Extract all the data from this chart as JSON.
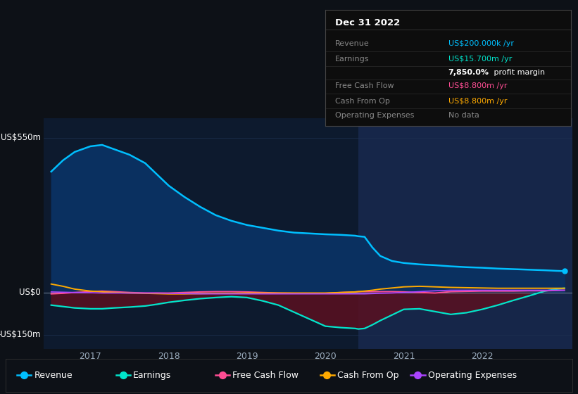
{
  "bg_color": "#0d1117",
  "plot_bg_color": "#0d1a2e",
  "highlight_bg_color": "#1e3060",
  "grid_color": "#1e3050",
  "ylim": [
    -200,
    620
  ],
  "xlim": [
    2016.4,
    2023.15
  ],
  "xticks": [
    2017,
    2018,
    2019,
    2020,
    2021,
    2022
  ],
  "ytick_labels": [
    "US$550m",
    "US$0",
    "-US$150m"
  ],
  "ytick_vals": [
    550,
    0,
    -150
  ],
  "legend_items": [
    "Revenue",
    "Earnings",
    "Free Cash Flow",
    "Cash From Op",
    "Operating Expenses"
  ],
  "legend_colors": [
    "#00bfff",
    "#00e5cc",
    "#ff4d94",
    "#ffaa00",
    "#aa44ff"
  ],
  "revenue_color": "#00bfff",
  "earnings_color": "#00e5cc",
  "fcf_color": "#ff4d94",
  "cashop_color": "#ffaa00",
  "opex_color": "#aa44ff",
  "revenue_fill_color": "#0a3060",
  "earnings_fill_color": "#5a1020",
  "x": [
    2016.5,
    2016.65,
    2016.8,
    2017.0,
    2017.15,
    2017.3,
    2017.5,
    2017.7,
    2017.85,
    2018.0,
    2018.2,
    2018.4,
    2018.6,
    2018.8,
    2019.0,
    2019.2,
    2019.4,
    2019.6,
    2019.8,
    2020.0,
    2020.2,
    2020.38,
    2020.42,
    2020.5,
    2020.6,
    2020.7,
    2020.85,
    2021.0,
    2021.2,
    2021.4,
    2021.6,
    2021.8,
    2022.0,
    2022.2,
    2022.4,
    2022.6,
    2022.8,
    2022.95,
    2023.05
  ],
  "revenue": [
    430,
    470,
    500,
    520,
    525,
    510,
    490,
    460,
    420,
    380,
    340,
    305,
    275,
    255,
    240,
    230,
    220,
    213,
    210,
    207,
    205,
    202,
    200,
    198,
    160,
    130,
    112,
    105,
    100,
    97,
    93,
    90,
    88,
    85,
    83,
    81,
    79,
    77,
    76
  ],
  "earnings": [
    -45,
    -50,
    -55,
    -58,
    -58,
    -55,
    -52,
    -48,
    -42,
    -35,
    -28,
    -22,
    -18,
    -15,
    -18,
    -30,
    -45,
    -70,
    -95,
    -120,
    -125,
    -128,
    -130,
    -128,
    -115,
    -100,
    -80,
    -60,
    -58,
    -68,
    -78,
    -72,
    -60,
    -45,
    -28,
    -12,
    5,
    12,
    15
  ],
  "fcf": [
    -5,
    -3,
    0,
    3,
    5,
    3,
    0,
    -2,
    -2,
    -2,
    0,
    2,
    3,
    3,
    2,
    0,
    -2,
    -3,
    -3,
    -3,
    0,
    2,
    3,
    3,
    3,
    3,
    3,
    2,
    0,
    -2,
    3,
    4,
    5,
    5,
    5,
    6,
    6,
    7,
    8
  ],
  "cashop": [
    30,
    22,
    12,
    5,
    2,
    0,
    -2,
    -3,
    -4,
    -5,
    -5,
    -4,
    -3,
    -3,
    -2,
    -2,
    -2,
    -2,
    -2,
    -2,
    0,
    2,
    3,
    5,
    8,
    12,
    16,
    20,
    22,
    20,
    18,
    17,
    16,
    15,
    15,
    15,
    15,
    15,
    15
  ],
  "opex": [
    2,
    1,
    0,
    -1,
    -2,
    -2,
    -2,
    -2,
    -2,
    -3,
    -4,
    -5,
    -5,
    -5,
    -5,
    -5,
    -5,
    -5,
    -5,
    -5,
    -5,
    -5,
    -5,
    -5,
    -4,
    -3,
    -2,
    0,
    3,
    6,
    8,
    8,
    8,
    8,
    8,
    8,
    8,
    8,
    8
  ],
  "highlight_start": 2020.42,
  "highlight_end": 2023.15,
  "tooltip_title": "Dec 31 2022",
  "tooltip_rows": [
    {
      "label": "Revenue",
      "value": "US$200.000k /yr",
      "color": "#00bfff"
    },
    {
      "label": "Earnings",
      "value": "US$15.700m /yr",
      "color": "#00e5cc"
    },
    {
      "label": "",
      "value": "7,850.0%",
      "color": "#ffffff",
      "suffix": " profit margin"
    },
    {
      "label": "Free Cash Flow",
      "value": "US$8.800m /yr",
      "color": "#ff4d94"
    },
    {
      "label": "Cash From Op",
      "value": "US$8.800m /yr",
      "color": "#ffaa00"
    },
    {
      "label": "Operating Expenses",
      "value": "No data",
      "color": "#888888"
    }
  ]
}
